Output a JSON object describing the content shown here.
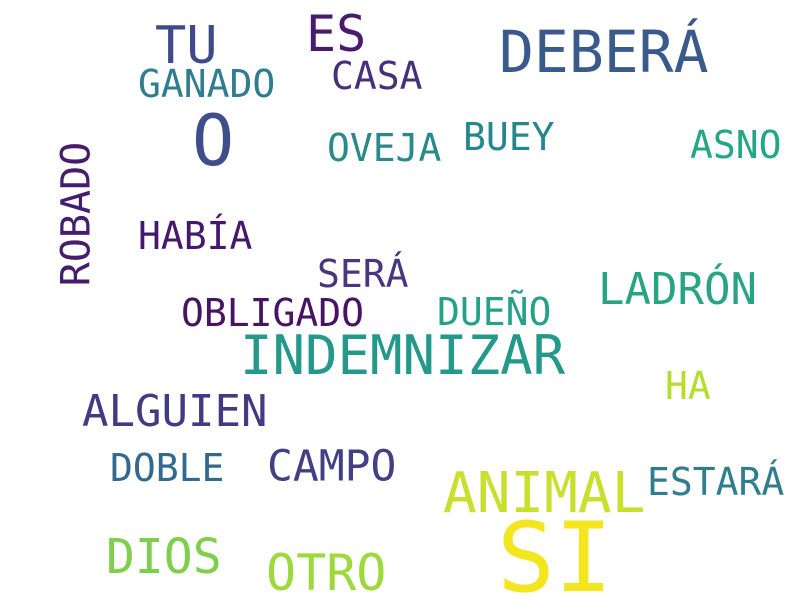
{
  "words": [
    {
      "text": "SI",
      "color": "#f3e51e"
    },
    {
      "text": "INDEMNIZAR",
      "color": "#23988b"
    },
    {
      "text": "DEBERÁ",
      "color": "#3b5a8c"
    },
    {
      "text": "O",
      "color": "#3d4e8a"
    },
    {
      "text": "ANIMAL",
      "color": "#c9df2d"
    },
    {
      "text": "TU",
      "color": "#3f4a8a"
    },
    {
      "text": "ES",
      "color": "#481b6d"
    },
    {
      "text": "DIOS",
      "color": "#7ecf4b"
    },
    {
      "text": "OTRO",
      "color": "#9dd93b"
    },
    {
      "text": "ROBADO",
      "color": "#461c6d"
    },
    {
      "text": "LADRÓN",
      "color": "#26a483"
    },
    {
      "text": "ALGUIEN",
      "color": "#443a83"
    },
    {
      "text": "CAMPO",
      "color": "#423f84"
    },
    {
      "text": "HABÍA",
      "color": "#46186c"
    },
    {
      "text": "GANADO",
      "color": "#2f7d8e"
    },
    {
      "text": "OVEJA",
      "color": "#2a8a8b"
    },
    {
      "text": "BUEY",
      "color": "#24868e"
    },
    {
      "text": "ASNO",
      "color": "#22a786"
    },
    {
      "text": "CASA",
      "color": "#472f7c"
    },
    {
      "text": "SERÁ",
      "color": "#46377f"
    },
    {
      "text": "OBLIGADO",
      "color": "#471365"
    },
    {
      "text": "DUEÑO",
      "color": "#25a18a"
    },
    {
      "text": "HA",
      "color": "#b5de2b"
    },
    {
      "text": "DOBLE",
      "color": "#316a8e"
    },
    {
      "text": "ESTARÁ",
      "color": "#2f7e8e"
    }
  ]
}
